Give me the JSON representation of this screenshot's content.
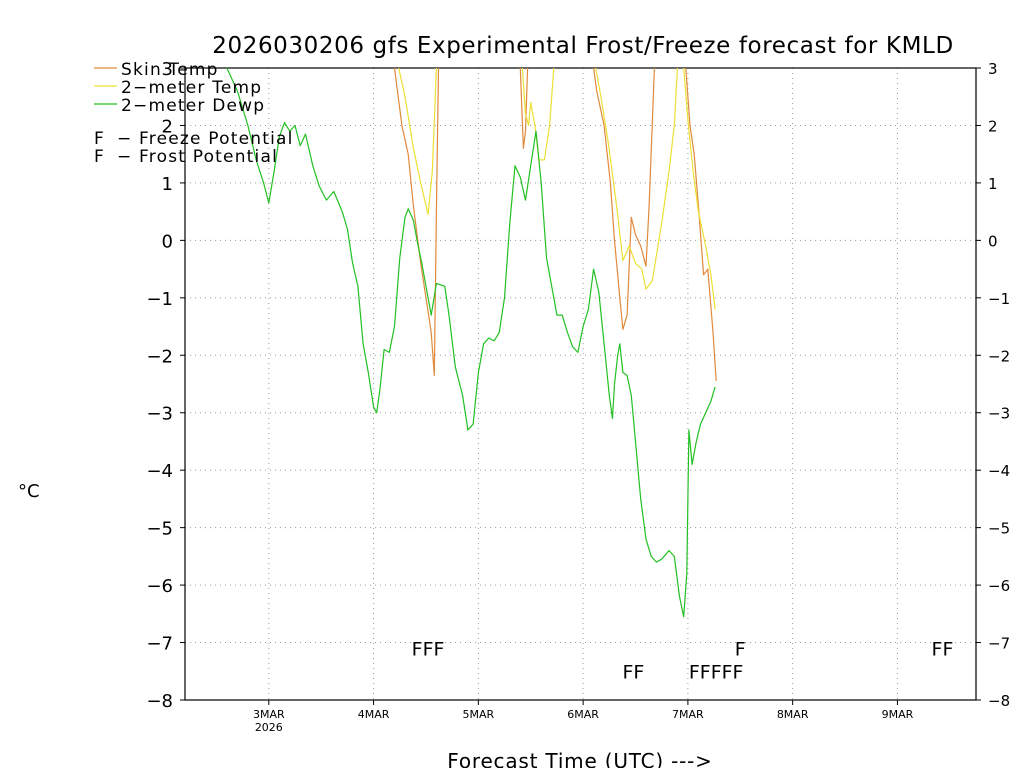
{
  "chart_data": {
    "type": "line",
    "title": "2026030206 gfs Experimental Frost/Freeze forecast for KMLD",
    "ylabel": "°C",
    "xlabel": "Forecast Time (UTC) --->",
    "ylim": [
      -8,
      3
    ],
    "yticks": [
      3,
      2,
      1,
      0,
      -1,
      -2,
      -3,
      -4,
      -5,
      -6,
      -7,
      -8
    ],
    "ytick_labels": [
      "3",
      "2",
      "1",
      "0",
      "−1",
      "−2",
      "−3",
      "−4",
      "−5",
      "−6",
      "−7",
      "−8"
    ],
    "xlim": [
      2.2,
      9.75
    ],
    "xticks": [
      {
        "day": 3,
        "label": "3MAR",
        "sublabel": "2026"
      },
      {
        "day": 4,
        "label": "4MAR",
        "sublabel": ""
      },
      {
        "day": 5,
        "label": "5MAR",
        "sublabel": ""
      },
      {
        "day": 6,
        "label": "6MAR",
        "sublabel": ""
      },
      {
        "day": 7,
        "label": "7MAR",
        "sublabel": ""
      },
      {
        "day": 8,
        "label": "8MAR",
        "sublabel": ""
      },
      {
        "day": 9,
        "label": "9MAR",
        "sublabel": ""
      }
    ],
    "grid": true,
    "legend_location": "top-left",
    "series": [
      {
        "name": "Skin Temp",
        "color": "#e08a3c",
        "segments": [
          [
            [
              4.2,
              3.0
            ],
            [
              4.27,
              2.0
            ],
            [
              4.33,
              1.5
            ],
            [
              4.38,
              0.6
            ],
            [
              4.45,
              -0.4
            ],
            [
              4.5,
              -1.0
            ],
            [
              4.55,
              -1.6
            ],
            [
              4.58,
              -2.35
            ],
            [
              4.6,
              0.5
            ],
            [
              4.62,
              3.0
            ]
          ],
          [
            [
              5.4,
              3.0
            ],
            [
              5.43,
              1.6
            ],
            [
              5.45,
              1.9
            ],
            [
              5.47,
              3.0
            ]
          ],
          [
            [
              6.1,
              3.0
            ],
            [
              6.13,
              2.6
            ],
            [
              6.2,
              2.0
            ],
            [
              6.26,
              1.0
            ],
            [
              6.3,
              0.0
            ],
            [
              6.35,
              -1.0
            ],
            [
              6.38,
              -1.55
            ],
            [
              6.42,
              -1.3
            ],
            [
              6.46,
              0.4
            ],
            [
              6.5,
              0.1
            ],
            [
              6.55,
              -0.1
            ],
            [
              6.6,
              -0.45
            ],
            [
              6.63,
              0.6
            ],
            [
              6.68,
              3.0
            ]
          ],
          [
            [
              6.98,
              3.0
            ],
            [
              7.02,
              2.0
            ],
            [
              7.06,
              1.5
            ],
            [
              7.1,
              0.6
            ],
            [
              7.15,
              -0.6
            ],
            [
              7.19,
              -0.5
            ],
            [
              7.24,
              -1.6
            ],
            [
              7.27,
              -2.45
            ]
          ]
        ]
      },
      {
        "name": "2-meter Temp",
        "color": "#ece034",
        "segments": [
          [
            [
              4.24,
              3.0
            ],
            [
              4.3,
              2.5
            ],
            [
              4.38,
              1.6
            ],
            [
              4.45,
              1.0
            ],
            [
              4.52,
              0.45
            ],
            [
              4.56,
              1.2
            ],
            [
              4.6,
              3.0
            ]
          ],
          [
            [
              5.42,
              3.0
            ],
            [
              5.45,
              2.2
            ],
            [
              5.48,
              2.0
            ],
            [
              5.5,
              2.4
            ],
            [
              5.54,
              2.0
            ],
            [
              5.58,
              1.4
            ],
            [
              5.63,
              1.4
            ],
            [
              5.68,
              2.0
            ],
            [
              5.72,
              3.0
            ]
          ],
          [
            [
              6.12,
              3.0
            ],
            [
              6.17,
              2.5
            ],
            [
              6.24,
              1.7
            ],
            [
              6.32,
              0.6
            ],
            [
              6.38,
              -0.35
            ],
            [
              6.44,
              -0.1
            ],
            [
              6.5,
              -0.4
            ],
            [
              6.56,
              -0.5
            ],
            [
              6.6,
              -0.85
            ],
            [
              6.66,
              -0.7
            ],
            [
              6.75,
              0.3
            ],
            [
              6.82,
              1.2
            ],
            [
              6.87,
              2.0
            ],
            [
              6.9,
              3.0
            ]
          ],
          [
            [
              6.96,
              3.0
            ],
            [
              7.0,
              2.1
            ],
            [
              7.05,
              1.2
            ],
            [
              7.1,
              0.5
            ],
            [
              7.17,
              -0.1
            ],
            [
              7.22,
              -0.6
            ],
            [
              7.26,
              -1.2
            ]
          ]
        ]
      },
      {
        "name": "2-meter Dewp",
        "color": "#22c022",
        "segments": [
          [
            [
              2.6,
              3.0
            ],
            [
              2.7,
              2.6
            ],
            [
              2.8,
              2.0
            ],
            [
              2.88,
              1.4
            ],
            [
              2.95,
              1.0
            ],
            [
              3.0,
              0.65
            ],
            [
              3.05,
              1.2
            ],
            [
              3.1,
              1.8
            ],
            [
              3.15,
              2.05
            ],
            [
              3.2,
              1.9
            ],
            [
              3.25,
              2.0
            ],
            [
              3.3,
              1.65
            ],
            [
              3.35,
              1.85
            ],
            [
              3.42,
              1.3
            ],
            [
              3.48,
              0.95
            ],
            [
              3.55,
              0.7
            ],
            [
              3.62,
              0.85
            ],
            [
              3.7,
              0.5
            ],
            [
              3.75,
              0.2
            ],
            [
              3.8,
              -0.4
            ],
            [
              3.85,
              -0.8
            ],
            [
              3.9,
              -1.8
            ],
            [
              3.95,
              -2.3
            ],
            [
              4.0,
              -2.9
            ],
            [
              4.03,
              -3.0
            ],
            [
              4.06,
              -2.6
            ],
            [
              4.1,
              -1.9
            ],
            [
              4.15,
              -1.95
            ],
            [
              4.2,
              -1.5
            ],
            [
              4.25,
              -0.3
            ],
            [
              4.3,
              0.4
            ],
            [
              4.33,
              0.55
            ],
            [
              4.38,
              0.35
            ],
            [
              4.42,
              -0.05
            ],
            [
              4.46,
              -0.4
            ],
            [
              4.5,
              -0.8
            ],
            [
              4.55,
              -1.3
            ],
            [
              4.6,
              -0.75
            ],
            [
              4.68,
              -0.8
            ],
            [
              4.72,
              -1.3
            ],
            [
              4.78,
              -2.2
            ],
            [
              4.85,
              -2.7
            ],
            [
              4.9,
              -3.3
            ],
            [
              4.95,
              -3.2
            ],
            [
              5.0,
              -2.3
            ],
            [
              5.05,
              -1.8
            ],
            [
              5.1,
              -1.7
            ],
            [
              5.15,
              -1.75
            ],
            [
              5.2,
              -1.6
            ],
            [
              5.25,
              -1.0
            ],
            [
              5.3,
              0.3
            ],
            [
              5.35,
              1.3
            ],
            [
              5.4,
              1.1
            ],
            [
              5.45,
              0.7
            ],
            [
              5.5,
              1.3
            ],
            [
              5.55,
              1.9
            ],
            [
              5.6,
              1.0
            ],
            [
              5.65,
              -0.3
            ],
            [
              5.7,
              -0.8
            ],
            [
              5.75,
              -1.3
            ],
            [
              5.8,
              -1.3
            ],
            [
              5.85,
              -1.6
            ],
            [
              5.9,
              -1.85
            ],
            [
              5.95,
              -1.95
            ],
            [
              6.0,
              -1.5
            ],
            [
              6.05,
              -1.2
            ],
            [
              6.1,
              -0.5
            ],
            [
              6.15,
              -0.9
            ],
            [
              6.2,
              -1.8
            ],
            [
              6.25,
              -2.7
            ],
            [
              6.28,
              -3.1
            ],
            [
              6.3,
              -2.5
            ],
            [
              6.33,
              -2.0
            ],
            [
              6.35,
              -1.8
            ],
            [
              6.38,
              -2.3
            ],
            [
              6.42,
              -2.35
            ],
            [
              6.46,
              -2.7
            ],
            [
              6.5,
              -3.5
            ],
            [
              6.55,
              -4.5
            ],
            [
              6.6,
              -5.2
            ],
            [
              6.65,
              -5.5
            ],
            [
              6.7,
              -5.6
            ],
            [
              6.75,
              -5.55
            ],
            [
              6.82,
              -5.4
            ],
            [
              6.87,
              -5.5
            ],
            [
              6.92,
              -6.2
            ],
            [
              6.96,
              -6.55
            ],
            [
              6.99,
              -5.8
            ],
            [
              7.01,
              -3.3
            ],
            [
              7.04,
              -3.9
            ],
            [
              7.08,
              -3.5
            ],
            [
              7.12,
              -3.2
            ],
            [
              7.17,
              -3.0
            ],
            [
              7.22,
              -2.8
            ],
            [
              7.26,
              -2.55
            ]
          ]
        ]
      }
    ],
    "flags": [
      {
        "text": "F",
        "type": "frost",
        "day": 4.52,
        "y": -7.1,
        "count": 3
      },
      {
        "text": "F",
        "type": "freeze",
        "day": 6.48,
        "y": -7.5,
        "count": 2
      },
      {
        "text": "F",
        "type": "freeze",
        "day": 7.27,
        "y": -7.5,
        "count": 5
      },
      {
        "text": "F",
        "type": "frost",
        "day": 7.5,
        "y": -7.1,
        "count": 1
      },
      {
        "text": "F",
        "type": "frost",
        "day": 9.43,
        "y": -7.1,
        "count": 2
      }
    ],
    "legend": {
      "skin": "Skin Temp",
      "temp": "2−meter Temp",
      "dewp": "2−meter Dewp",
      "freeze_letter": "F",
      "freeze_text": "− Freeze Potential",
      "frost_letter": "F",
      "frost_text": "− Frost Potential"
    },
    "colors": {
      "skin": "#e08a3c",
      "temp": "#ece034",
      "dewp": "#22c022",
      "freeze": "#cc2d96",
      "frost": "#4c5ed6",
      "grid": "#9a9a9a"
    }
  }
}
